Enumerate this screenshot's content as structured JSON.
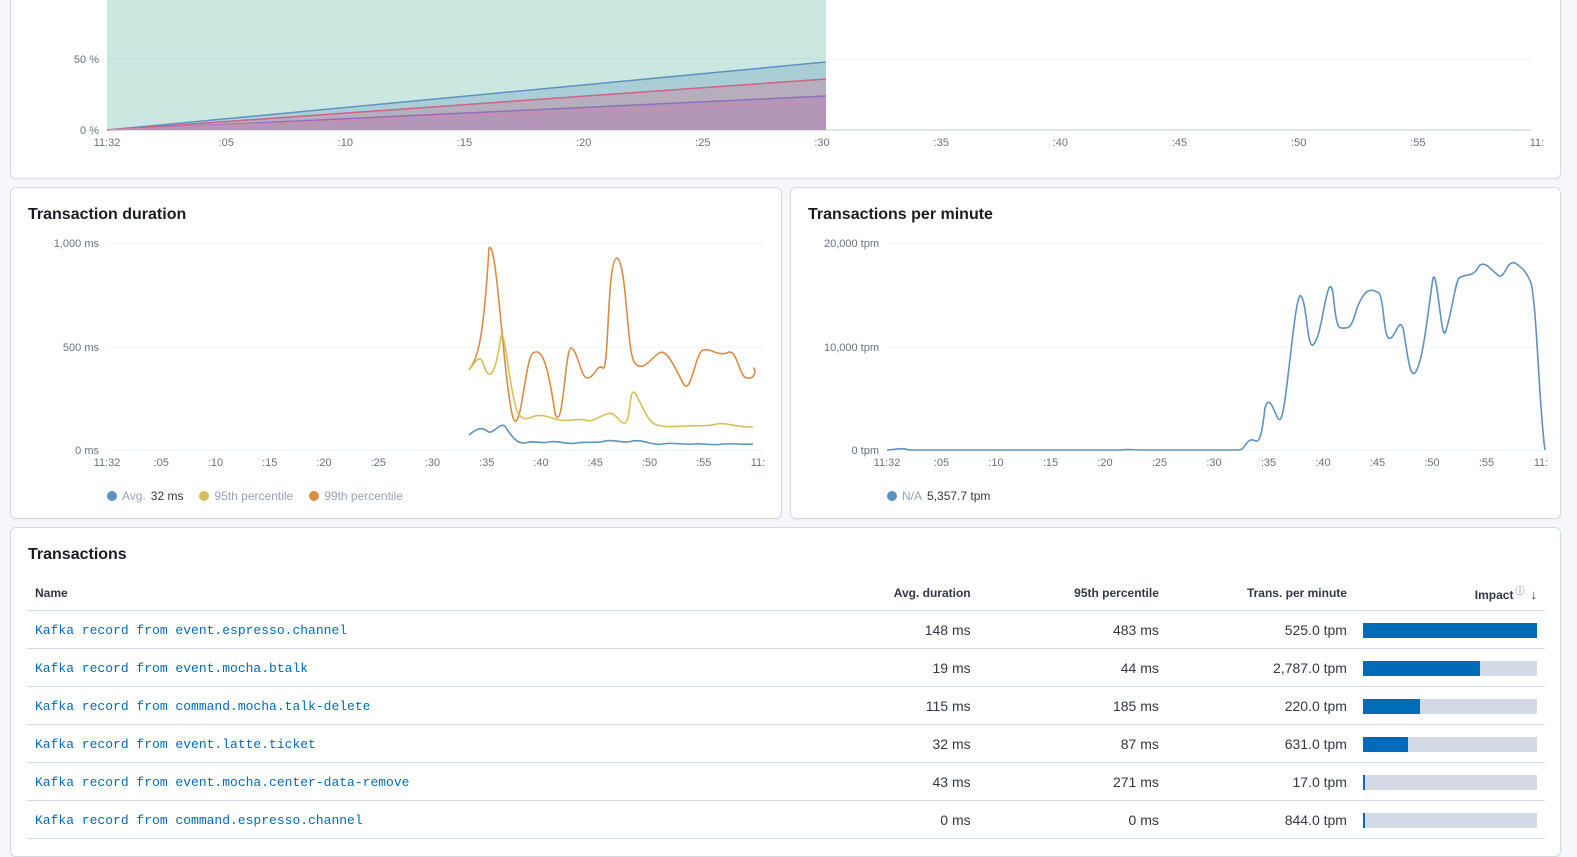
{
  "breakdown_chart": {
    "y_ticks": [
      "50 %",
      "0 %"
    ],
    "x_ticks": [
      "11:32",
      ":05",
      ":10",
      ":15",
      ":20",
      ":25",
      ":30",
      ":35",
      ":40",
      ":45",
      ":50",
      ":55",
      "11:"
    ],
    "colors": [
      "#54b399",
      "#6092c0",
      "#d36086",
      "#9170b8",
      "#ca8eae"
    ]
  },
  "duration_panel": {
    "title": "Transaction duration",
    "y_ticks": [
      "1,000 ms",
      "500 ms",
      "0 ms"
    ],
    "x_ticks": [
      "11:32",
      ":05",
      ":10",
      ":15",
      ":20",
      ":25",
      ":30",
      ":35",
      ":40",
      ":45",
      ":50",
      ":55",
      "11:"
    ],
    "legend": [
      {
        "label": "Avg.",
        "value": "32 ms",
        "color": "#6092c0"
      },
      {
        "label": "95th percentile",
        "value": "",
        "color": "#d6bf57"
      },
      {
        "label": "99th percentile",
        "value": "",
        "color": "#da8b45"
      }
    ]
  },
  "tpm_panel": {
    "title": "Transactions per minute",
    "y_ticks": [
      "20,000 tpm",
      "10,000 tpm",
      "0 tpm"
    ],
    "x_ticks": [
      "11:32",
      ":05",
      ":10",
      ":15",
      ":20",
      ":25",
      ":30",
      ":35",
      ":40",
      ":45",
      ":50",
      ":55",
      "11:"
    ],
    "legend": [
      {
        "label": "N/A",
        "value": "5,357.7 tpm",
        "color": "#6092c0"
      }
    ]
  },
  "transactions": {
    "title": "Transactions",
    "columns": {
      "name": "Name",
      "avg_duration": "Avg. duration",
      "p95": "95th percentile",
      "tpm": "Trans. per minute",
      "impact": "Impact"
    },
    "rows": [
      {
        "name": "Kafka record from event.espresso.channel",
        "avg": "148 ms",
        "p95": "483 ms",
        "tpm": "525.0 tpm",
        "impact": 100
      },
      {
        "name": "Kafka record from event.mocha.btalk",
        "avg": "19 ms",
        "p95": "44 ms",
        "tpm": "2,787.0 tpm",
        "impact": 67
      },
      {
        "name": "Kafka record from command.mocha.talk-delete",
        "avg": "115 ms",
        "p95": "185 ms",
        "tpm": "220.0 tpm",
        "impact": 33
      },
      {
        "name": "Kafka record from event.latte.ticket",
        "avg": "32 ms",
        "p95": "87 ms",
        "tpm": "631.0 tpm",
        "impact": 26
      },
      {
        "name": "Kafka record from event.mocha.center-data-remove",
        "avg": "43 ms",
        "p95": "271 ms",
        "tpm": "17.0 tpm",
        "impact": 1
      },
      {
        "name": "Kafka record from command.espresso.channel",
        "avg": "0 ms",
        "p95": "0 ms",
        "tpm": "844.0 tpm",
        "impact": 1
      }
    ]
  }
}
